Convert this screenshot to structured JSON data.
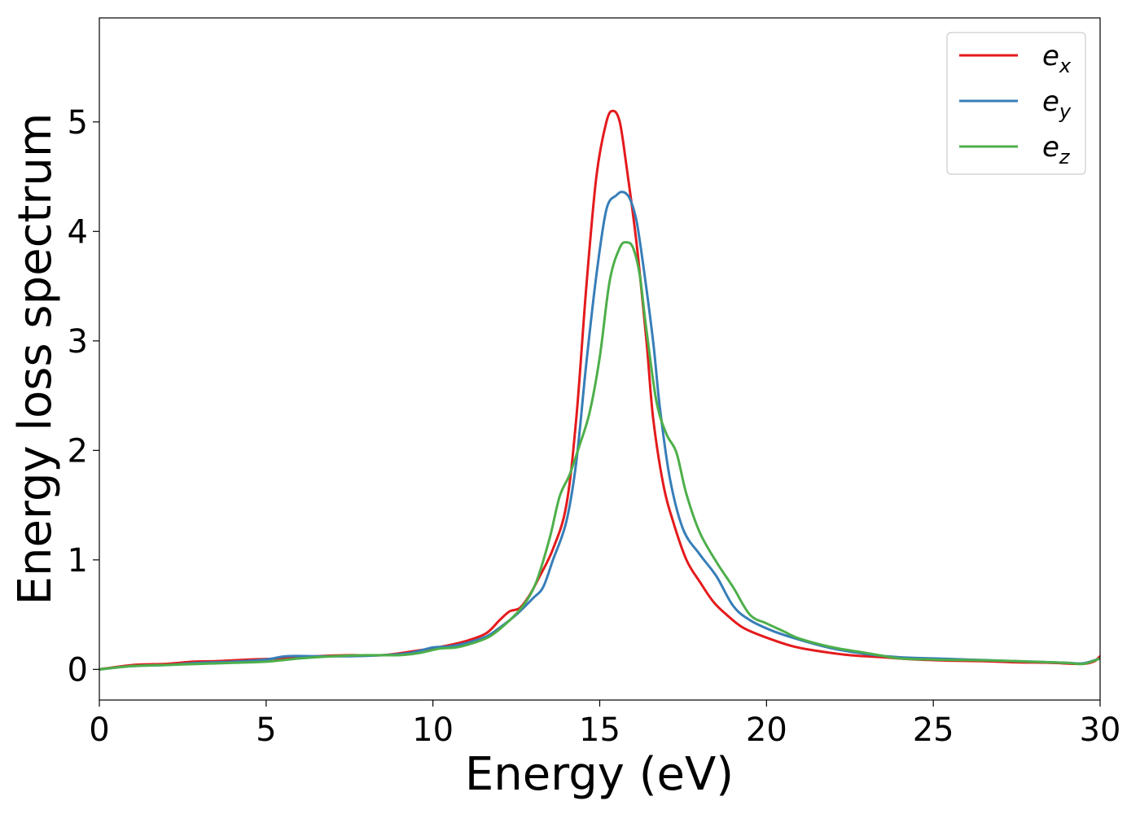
{
  "chart_data": {
    "type": "line",
    "title": "",
    "xlabel": "Energy (eV)",
    "ylabel": "Energy loss spectrum",
    "xlim": [
      0,
      30
    ],
    "ylim": [
      -0.28,
      5.95
    ],
    "xticks": [
      0,
      5,
      10,
      15,
      20,
      25,
      30
    ],
    "yticks": [
      0,
      1,
      2,
      3,
      4,
      5
    ],
    "grid": false,
    "legend_position": "top-right",
    "series": [
      {
        "name": "e_x",
        "label_base": "e",
        "label_sub": "x",
        "color": "#e41a1c",
        "points": [
          [
            0,
            0
          ],
          [
            1,
            0.04
          ],
          [
            2,
            0.05
          ],
          [
            2.8,
            0.07
          ],
          [
            3.5,
            0.075
          ],
          [
            4.5,
            0.09
          ],
          [
            5.5,
            0.1
          ],
          [
            6.5,
            0.12
          ],
          [
            7.5,
            0.13
          ],
          [
            8.5,
            0.13
          ],
          [
            9.5,
            0.17
          ],
          [
            10.3,
            0.21
          ],
          [
            11,
            0.26
          ],
          [
            11.6,
            0.33
          ],
          [
            12,
            0.45
          ],
          [
            12.3,
            0.53
          ],
          [
            12.6,
            0.56
          ],
          [
            12.9,
            0.68
          ],
          [
            13.2,
            0.85
          ],
          [
            13.6,
            1.1
          ],
          [
            14,
            1.5
          ],
          [
            14.3,
            2.3
          ],
          [
            14.6,
            3.5
          ],
          [
            14.9,
            4.5
          ],
          [
            15.2,
            5.0
          ],
          [
            15.4,
            5.1
          ],
          [
            15.6,
            5.0
          ],
          [
            15.8,
            4.6
          ],
          [
            16.1,
            3.9
          ],
          [
            16.4,
            3.0
          ],
          [
            16.6,
            2.3
          ],
          [
            16.9,
            1.7
          ],
          [
            17.2,
            1.35
          ],
          [
            17.6,
            1.0
          ],
          [
            18,
            0.8
          ],
          [
            18.4,
            0.62
          ],
          [
            18.8,
            0.5
          ],
          [
            19.3,
            0.38
          ],
          [
            20,
            0.29
          ],
          [
            20.8,
            0.21
          ],
          [
            21.5,
            0.17
          ],
          [
            22.5,
            0.13
          ],
          [
            23.5,
            0.11
          ],
          [
            24.5,
            0.09
          ],
          [
            25.5,
            0.08
          ],
          [
            26.5,
            0.075
          ],
          [
            27.5,
            0.065
          ],
          [
            28.5,
            0.06
          ],
          [
            29.4,
            0.05
          ],
          [
            29.8,
            0.07
          ],
          [
            30,
            0.12
          ]
        ]
      },
      {
        "name": "e_y",
        "label_base": "e",
        "label_sub": "y",
        "color": "#377eb8",
        "points": [
          [
            0,
            0
          ],
          [
            1,
            0.03
          ],
          [
            2,
            0.04
          ],
          [
            3,
            0.06
          ],
          [
            4,
            0.07
          ],
          [
            5,
            0.09
          ],
          [
            5.6,
            0.12
          ],
          [
            6.5,
            0.12
          ],
          [
            7.5,
            0.12
          ],
          [
            8.5,
            0.13
          ],
          [
            9.3,
            0.15
          ],
          [
            10,
            0.2
          ],
          [
            10.5,
            0.21
          ],
          [
            11,
            0.24
          ],
          [
            11.6,
            0.3
          ],
          [
            12,
            0.38
          ],
          [
            12.5,
            0.5
          ],
          [
            13,
            0.65
          ],
          [
            13.3,
            0.75
          ],
          [
            13.6,
            1.0
          ],
          [
            14,
            1.35
          ],
          [
            14.3,
            1.9
          ],
          [
            14.6,
            2.8
          ],
          [
            14.9,
            3.6
          ],
          [
            15.2,
            4.2
          ],
          [
            15.5,
            4.33
          ],
          [
            15.7,
            4.36
          ],
          [
            15.9,
            4.3
          ],
          [
            16.1,
            4.1
          ],
          [
            16.3,
            3.7
          ],
          [
            16.6,
            3.0
          ],
          [
            16.8,
            2.4
          ],
          [
            17.1,
            1.75
          ],
          [
            17.5,
            1.28
          ],
          [
            18,
            1.05
          ],
          [
            18.5,
            0.85
          ],
          [
            19,
            0.58
          ],
          [
            19.5,
            0.45
          ],
          [
            20.2,
            0.35
          ],
          [
            21,
            0.27
          ],
          [
            22,
            0.19
          ],
          [
            23,
            0.14
          ],
          [
            24,
            0.11
          ],
          [
            25,
            0.1
          ],
          [
            26,
            0.09
          ],
          [
            27,
            0.08
          ],
          [
            28,
            0.07
          ],
          [
            29,
            0.06
          ],
          [
            29.5,
            0.055
          ],
          [
            30,
            0.1
          ]
        ]
      },
      {
        "name": "e_z",
        "label_base": "e",
        "label_sub": "z",
        "color": "#4daf4a",
        "points": [
          [
            0,
            0
          ],
          [
            1,
            0.03
          ],
          [
            2,
            0.04
          ],
          [
            3,
            0.05
          ],
          [
            4,
            0.06
          ],
          [
            5,
            0.07
          ],
          [
            6,
            0.1
          ],
          [
            7,
            0.12
          ],
          [
            8,
            0.13
          ],
          [
            9,
            0.13
          ],
          [
            9.6,
            0.15
          ],
          [
            10.2,
            0.19
          ],
          [
            10.7,
            0.2
          ],
          [
            11.2,
            0.24
          ],
          [
            11.7,
            0.3
          ],
          [
            12.2,
            0.42
          ],
          [
            12.7,
            0.58
          ],
          [
            13.1,
            0.8
          ],
          [
            13.5,
            1.2
          ],
          [
            13.8,
            1.58
          ],
          [
            14.1,
            1.78
          ],
          [
            14.4,
            2.05
          ],
          [
            14.7,
            2.35
          ],
          [
            15,
            2.85
          ],
          [
            15.3,
            3.55
          ],
          [
            15.6,
            3.85
          ],
          [
            15.8,
            3.9
          ],
          [
            16,
            3.85
          ],
          [
            16.2,
            3.6
          ],
          [
            16.4,
            3.1
          ],
          [
            16.7,
            2.45
          ],
          [
            17,
            2.15
          ],
          [
            17.3,
            1.98
          ],
          [
            17.6,
            1.6
          ],
          [
            18,
            1.25
          ],
          [
            18.5,
            0.98
          ],
          [
            19,
            0.75
          ],
          [
            19.5,
            0.5
          ],
          [
            20,
            0.42
          ],
          [
            20.5,
            0.35
          ],
          [
            21,
            0.28
          ],
          [
            22,
            0.2
          ],
          [
            23,
            0.15
          ],
          [
            24,
            0.1
          ],
          [
            25,
            0.09
          ],
          [
            26,
            0.085
          ],
          [
            27,
            0.08
          ],
          [
            28,
            0.07
          ],
          [
            29,
            0.06
          ],
          [
            29.5,
            0.05
          ],
          [
            30,
            0.1
          ]
        ]
      }
    ]
  }
}
